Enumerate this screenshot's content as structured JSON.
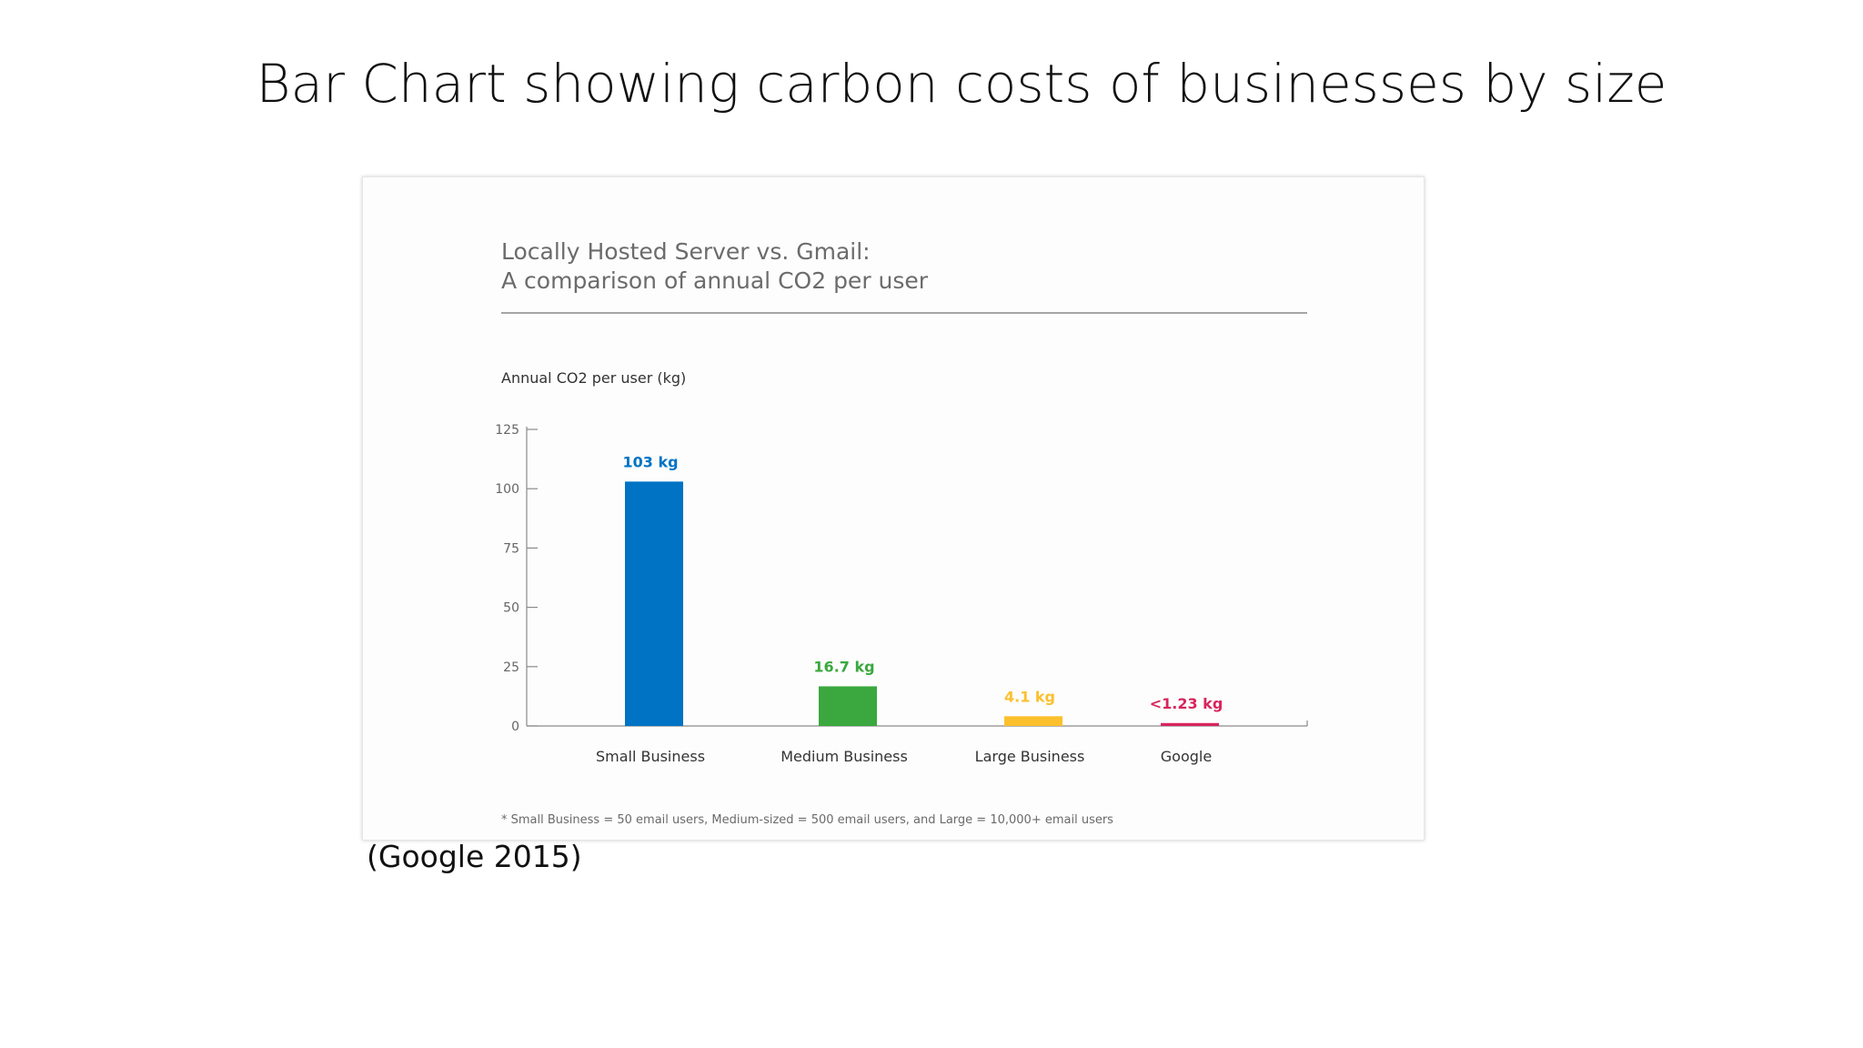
{
  "slide": {
    "title": "Bar Chart showing carbon costs of businesses by size",
    "caption": "(Google 2015)"
  },
  "chart_data": {
    "type": "bar",
    "title_line1": "Locally Hosted Server vs. Gmail:",
    "title_line2": "A comparison of annual CO2 per user",
    "ylabel": "Annual CO2 per user (kg)",
    "xlabel": "",
    "ylim": [
      0,
      125
    ],
    "yticks": [
      0,
      25,
      50,
      75,
      100,
      125
    ],
    "categories": [
      "Small Business",
      "Medium Business",
      "Large Business",
      "Google"
    ],
    "values": [
      103,
      16.7,
      4.1,
      1.23
    ],
    "data_labels": [
      "103 kg",
      "16.7 kg",
      "4.1 kg",
      "<1.23 kg"
    ],
    "colors": [
      "#0073c4",
      "#3aa83e",
      "#fbc02d",
      "#d8245d"
    ],
    "grid": false,
    "legend": "none",
    "footnote": "* Small Business = 50 email users, Medium-sized = 500 email users, and Large = 10,000+ email users"
  }
}
